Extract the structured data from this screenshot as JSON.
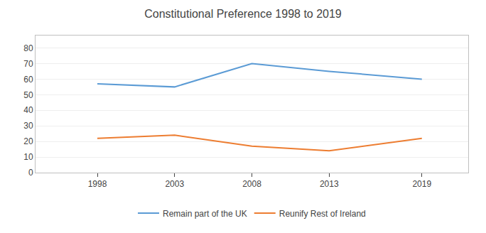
{
  "chart_data": {
    "type": "line",
    "title": "Constitutional Preference 1998 to 2019",
    "x": [
      1998,
      2003,
      2008,
      2013,
      2019
    ],
    "series": [
      {
        "name": "Remain part of the UK",
        "color": "#5b9bd5",
        "values": [
          57,
          55,
          70,
          65,
          60
        ]
      },
      {
        "name": "Reunify Rest of Ireland",
        "color": "#ed7d31",
        "values": [
          22,
          24,
          17,
          14,
          22
        ]
      }
    ],
    "xlim": [
      1994,
      2022
    ],
    "xticks": [
      1998,
      2003,
      2008,
      2013,
      2019
    ],
    "ylim": [
      0,
      88
    ],
    "yticks": [
      0,
      10,
      20,
      30,
      40,
      50,
      60,
      70,
      80
    ],
    "grid": "y",
    "legend": "bottom"
  }
}
